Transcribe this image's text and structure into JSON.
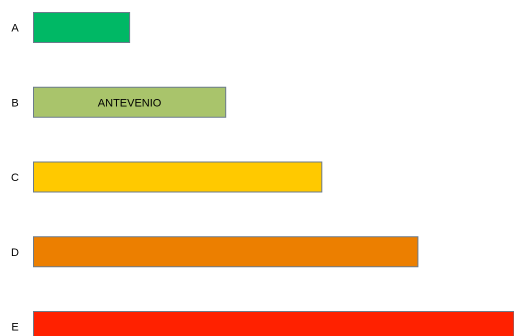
{
  "chart_data": {
    "type": "bar",
    "orientation": "horizontal",
    "categories": [
      "A",
      "B",
      "C",
      "D",
      "E"
    ],
    "values": [
      1,
      2,
      3,
      4,
      5
    ],
    "colors": [
      "#00b865",
      "#a9c46b",
      "#ffc900",
      "#ec7f00",
      "#ff2100"
    ],
    "border_color": "#6b7b8c",
    "bar_labels": [
      "",
      "ANTEVENIO",
      "",
      "",
      ""
    ],
    "title": "",
    "xlabel": "",
    "ylabel": "",
    "xlim": [
      0,
      5
    ],
    "grid": false,
    "legend": "none"
  }
}
